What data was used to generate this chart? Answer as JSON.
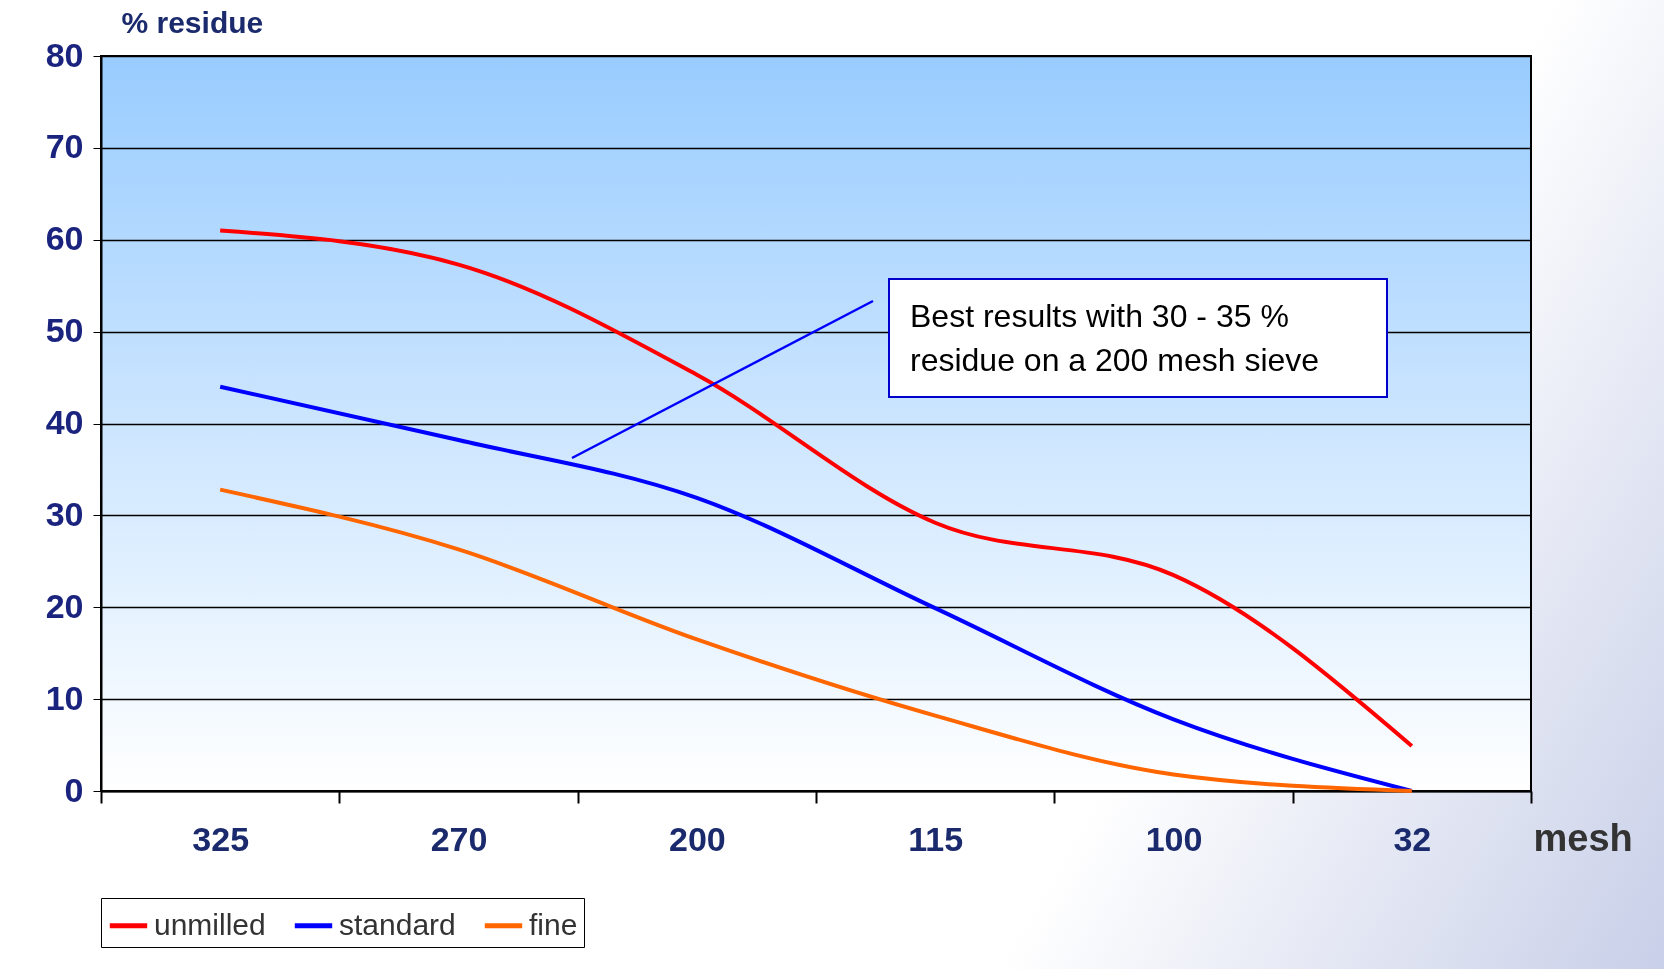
{
  "chart_data": {
    "type": "line",
    "ylabel": "% residue",
    "xlabel": "mesh",
    "categories": [
      "325",
      "270",
      "200",
      "115",
      "100",
      "32"
    ],
    "series": [
      {
        "name": "unmilled",
        "color": "#ff0000",
        "values": [
          61,
          57.3,
          45.3,
          29.2,
          23.5,
          4.9
        ]
      },
      {
        "name": "standard",
        "color": "#0000ff",
        "values": [
          44,
          38.2,
          31.9,
          19.9,
          7.8,
          0
        ]
      },
      {
        "name": "fine",
        "color": "#ff6600",
        "values": [
          32.8,
          26.3,
          16.5,
          8.2,
          1.8,
          0
        ]
      }
    ],
    "ylim": [
      0,
      80
    ],
    "yticks": [
      0,
      10,
      20,
      30,
      40,
      50,
      60,
      70,
      80
    ],
    "grid": "y",
    "legend": "bottom",
    "marker": "none",
    "line_style": "solid",
    "annotations": [
      "Best results with  30 - 35 % residue on a  200 mesh sieve"
    ]
  }
}
